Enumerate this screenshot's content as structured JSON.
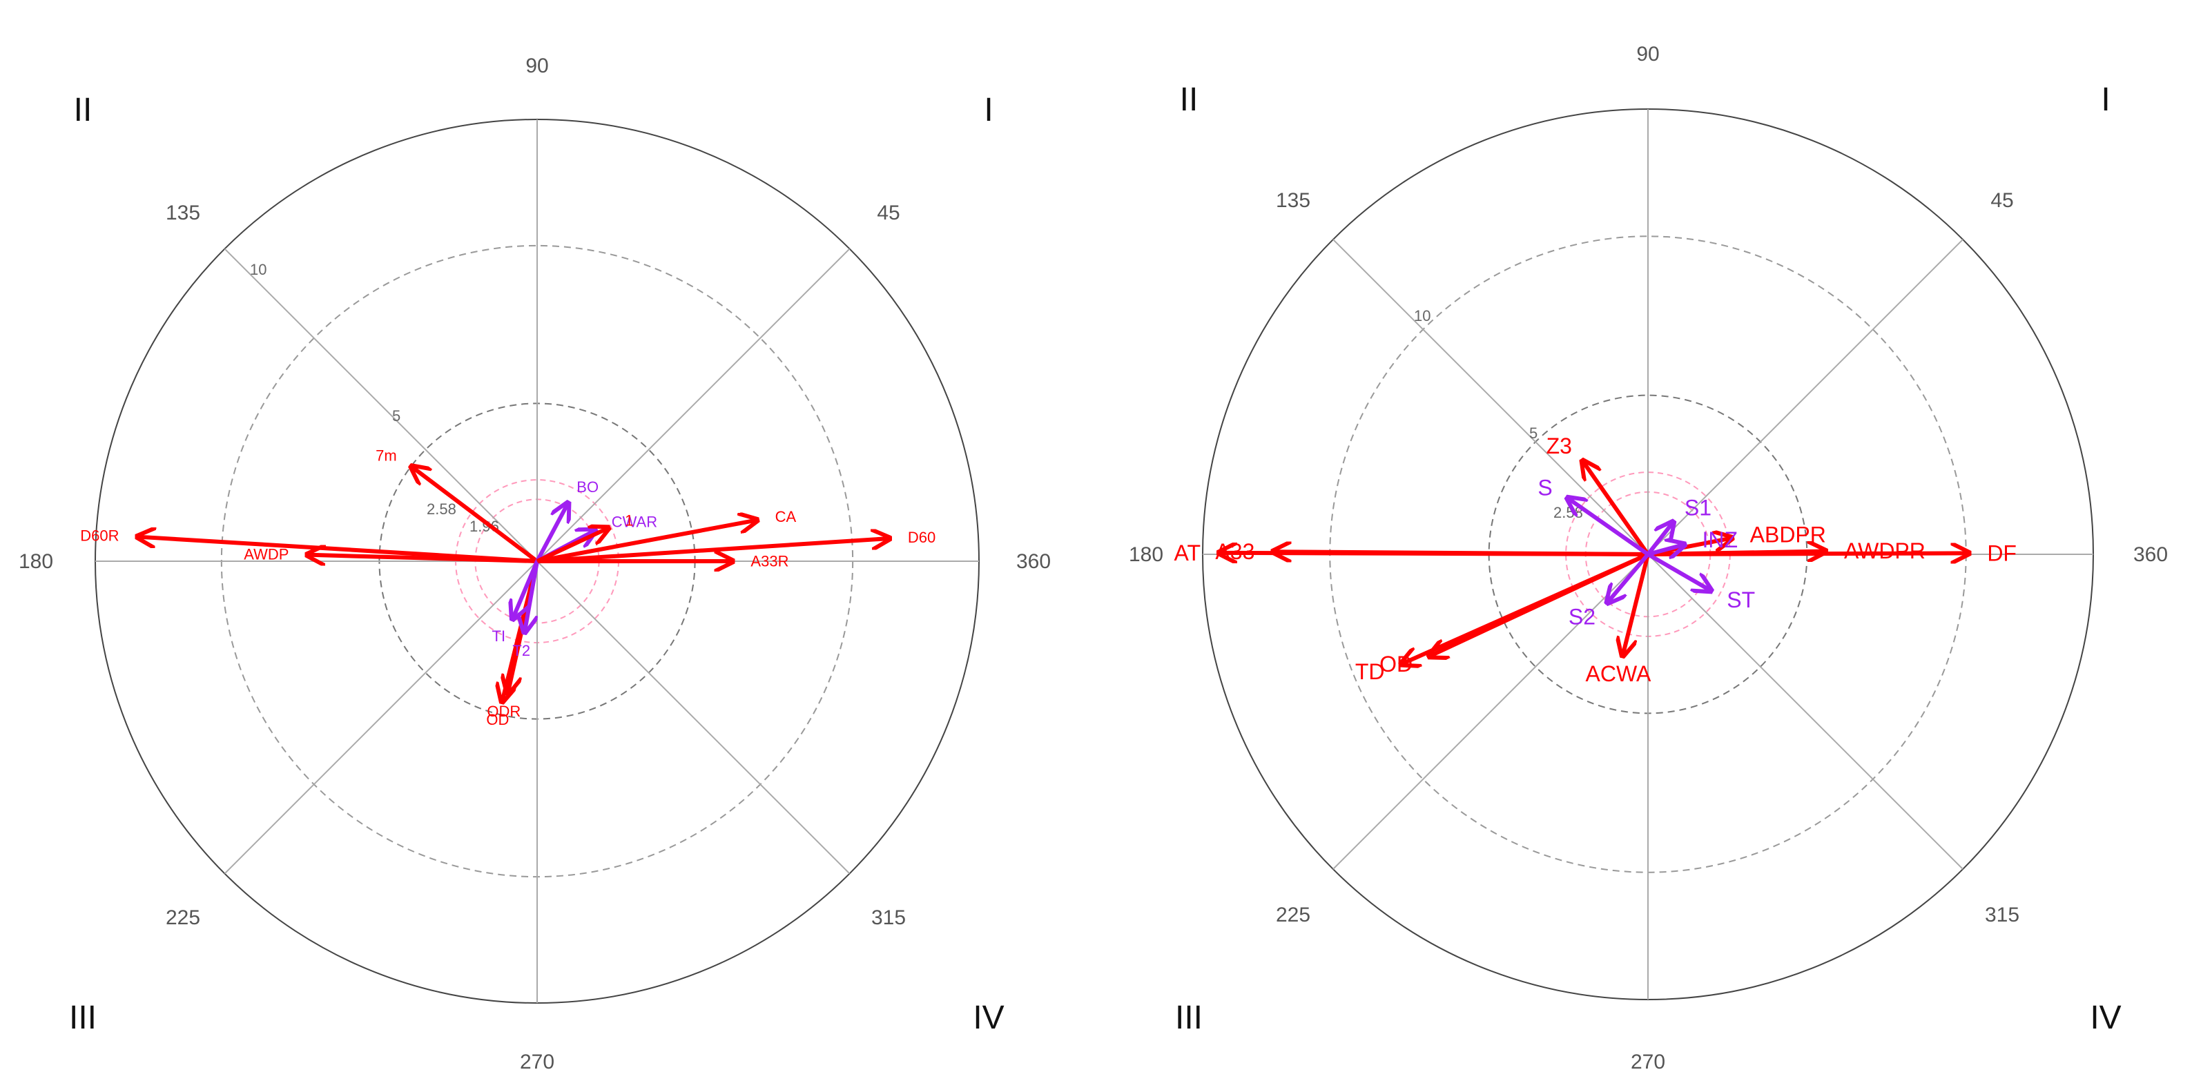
{
  "chart_data": [
    {
      "type": "polar-vector",
      "angle_labels": [
        "90",
        "45",
        "135",
        "180",
        "360",
        "225",
        "315",
        "270"
      ],
      "quadrant_labels": [
        "II",
        "I",
        "III",
        "IV"
      ],
      "ring_labels": [
        "1.96",
        "2.58",
        "5",
        "10"
      ],
      "ring_values": [
        1.96,
        2.58,
        5,
        10
      ],
      "r_max": 14,
      "vectors": [
        {
          "name": "D60R",
          "angle": 176.5,
          "length": 12.7,
          "group": "red"
        },
        {
          "name": "D60",
          "angle": 3.7,
          "length": 11.2,
          "group": "red"
        },
        {
          "name": "AWDP",
          "angle": 178.4,
          "length": 7.3,
          "group": "red"
        },
        {
          "name": "CA",
          "angle": 10.6,
          "length": 7.1,
          "group": "red"
        },
        {
          "name": "A33R",
          "angle": 0.0,
          "length": 6.2,
          "group": "red"
        },
        {
          "name": "7m",
          "angle": 143.0,
          "length": 5.0,
          "group": "red"
        },
        {
          "name": "ODR",
          "angle": 257.5,
          "length": 4.3,
          "group": "red"
        },
        {
          "name": "OD",
          "angle": 256.0,
          "length": 4.6,
          "group": "red"
        },
        {
          "name": "BO",
          "angle": 62.0,
          "length": 2.1,
          "group": "purple"
        },
        {
          "name": "CWAR",
          "angle": 28.0,
          "length": 2.1,
          "group": "purple"
        },
        {
          "name": "TI",
          "angle": 247.0,
          "length": 2.0,
          "group": "purple"
        },
        {
          "name": "T2",
          "angle": 260.0,
          "length": 2.3,
          "group": "purple"
        },
        {
          "name": "1",
          "angle": 25.0,
          "length": 2.5,
          "group": "red"
        }
      ]
    },
    {
      "type": "polar-vector",
      "angle_labels": [
        "90",
        "45",
        "135",
        "180",
        "360",
        "225",
        "315",
        "270"
      ],
      "quadrant_labels": [
        "II",
        "I",
        "III",
        "IV"
      ],
      "ring_labels": [
        "2.58",
        "5",
        "10"
      ],
      "ring_values": [
        1.96,
        2.58,
        5,
        10
      ],
      "r_max": 14,
      "vectors": [
        {
          "name": "AT",
          "angle": 179.8,
          "length": 13.5,
          "group": "red"
        },
        {
          "name": "A33",
          "angle": 179.6,
          "length": 11.8,
          "group": "red"
        },
        {
          "name": "DF",
          "angle": 0.2,
          "length": 10.1,
          "group": "red"
        },
        {
          "name": "AWDPR",
          "angle": 1.0,
          "length": 5.6,
          "group": "red"
        },
        {
          "name": "ABDPR",
          "angle": 11.0,
          "length": 2.7,
          "group": "red"
        },
        {
          "name": "TD",
          "angle": 204.0,
          "length": 8.5,
          "group": "red"
        },
        {
          "name": "OD",
          "angle": 205.0,
          "length": 7.6,
          "group": "red"
        },
        {
          "name": "ACWA",
          "angle": 256.0,
          "length": 3.3,
          "group": "red"
        },
        {
          "name": "Z3",
          "angle": 125.0,
          "length": 3.6,
          "group": "red"
        },
        {
          "name": "S1",
          "angle": 52.0,
          "length": 1.3,
          "group": "purple"
        },
        {
          "name": "S",
          "angle": 145.0,
          "length": 3.1,
          "group": "purple"
        },
        {
          "name": "INZ",
          "angle": 15.0,
          "length": 1.2,
          "group": "purple"
        },
        {
          "name": "ST",
          "angle": 330.0,
          "length": 2.3,
          "group": "purple"
        },
        {
          "name": "S2",
          "angle": 230.0,
          "length": 2.0,
          "group": "purple"
        }
      ]
    }
  ]
}
